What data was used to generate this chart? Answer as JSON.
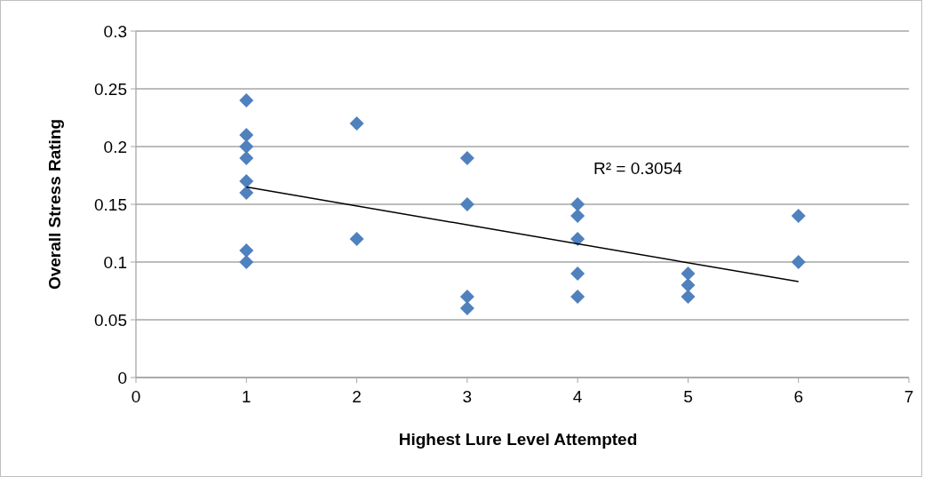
{
  "chart_data": {
    "type": "scatter",
    "xlabel": "Highest Lure Level Attempted",
    "ylabel": "Overall Stress Rating",
    "xlim": [
      0,
      7
    ],
    "xticks": [
      0,
      1,
      2,
      3,
      4,
      5,
      6,
      7
    ],
    "ylim": [
      0,
      0.3
    ],
    "yticks": [
      0,
      0.05,
      0.1,
      0.15,
      0.2,
      0.25,
      0.3
    ],
    "grid": "y",
    "annotations": [
      "R² = 0.3054"
    ],
    "series": [
      {
        "marker": "diamond",
        "color": "#4f81bd",
        "x": [
          1,
          1,
          1,
          1,
          1,
          1,
          1,
          1,
          2,
          2,
          3,
          3,
          3,
          3,
          4,
          4,
          4,
          4,
          4,
          5,
          5,
          5,
          6,
          6
        ],
        "values": [
          0.24,
          0.21,
          0.2,
          0.19,
          0.17,
          0.16,
          0.11,
          0.1,
          0.22,
          0.12,
          0.19,
          0.15,
          0.07,
          0.06,
          0.15,
          0.14,
          0.12,
          0.09,
          0.07,
          0.09,
          0.08,
          0.07,
          0.14,
          0.1
        ]
      },
      {
        "type": "line",
        "color": "#000000",
        "x": [
          1,
          6
        ],
        "values": [
          0.165,
          0.083
        ]
      }
    ]
  }
}
